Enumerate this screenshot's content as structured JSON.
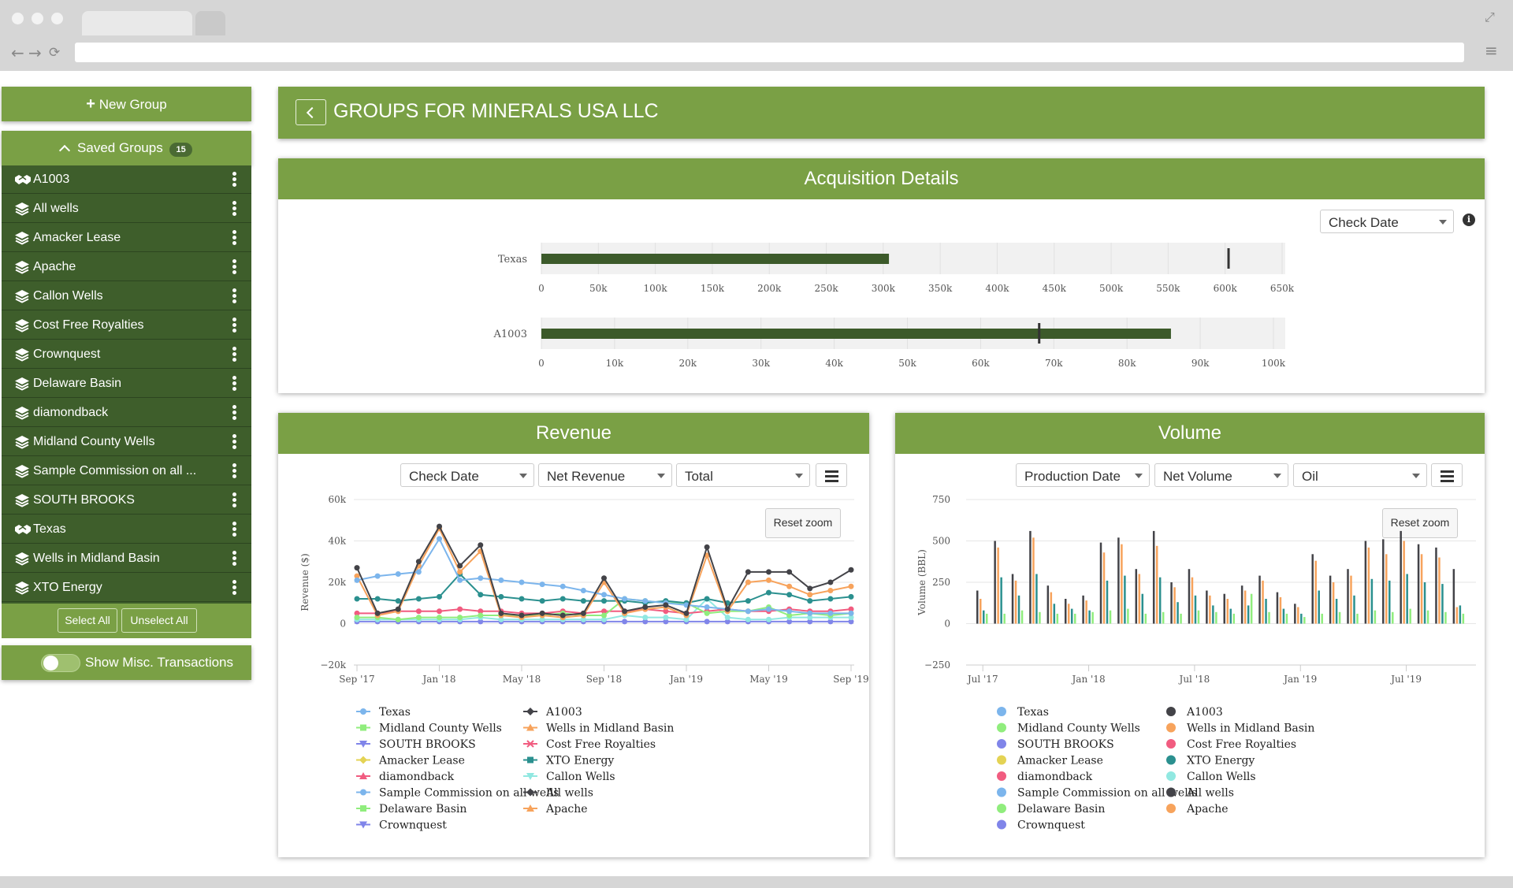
{
  "window": {
    "url": ""
  },
  "sidebar": {
    "new_group_label": "New Group",
    "saved_groups_label": "Saved Groups",
    "saved_groups_count": "15",
    "groups": [
      {
        "label": "A1003",
        "icon": "handshake-icon"
      },
      {
        "label": "All wells",
        "icon": "layers-icon"
      },
      {
        "label": "Amacker Lease",
        "icon": "layers-icon"
      },
      {
        "label": "Apache",
        "icon": "layers-icon"
      },
      {
        "label": "Callon Wells",
        "icon": "layers-icon"
      },
      {
        "label": "Cost Free Royalties",
        "icon": "layers-icon"
      },
      {
        "label": "Crownquest",
        "icon": "layers-icon"
      },
      {
        "label": "Delaware Basin",
        "icon": "layers-icon"
      },
      {
        "label": "diamondback",
        "icon": "layers-icon"
      },
      {
        "label": "Midland County Wells",
        "icon": "layers-icon"
      },
      {
        "label": "Sample Commission on all ...",
        "icon": "layers-icon"
      },
      {
        "label": "SOUTH BROOKS",
        "icon": "layers-icon"
      },
      {
        "label": "Texas",
        "icon": "handshake-icon"
      },
      {
        "label": "Wells in Midland Basin",
        "icon": "layers-icon"
      },
      {
        "label": "XTO Energy",
        "icon": "layers-icon"
      }
    ],
    "select_all_label": "Select All",
    "unselect_all_label": "Unselect All",
    "misc_toggle_label": "Show Misc. Transactions",
    "misc_toggle_on": false
  },
  "page_title": "GROUPS FOR MINERALS USA LLC",
  "acquisition": {
    "title": "Acquisition Details",
    "date_select": "Check Date",
    "rows": [
      {
        "label": "Texas",
        "value": 305000,
        "target": 603000,
        "max": 650000,
        "ticks": [
          "0",
          "50k",
          "100k",
          "150k",
          "200k",
          "250k",
          "300k",
          "350k",
          "400k",
          "450k",
          "500k",
          "550k",
          "600k",
          "650k"
        ]
      },
      {
        "label": "A1003",
        "value": 86000,
        "target": 68000,
        "max": 100000,
        "ticks": [
          "0",
          "10k",
          "20k",
          "30k",
          "40k",
          "50k",
          "60k",
          "70k",
          "80k",
          "90k",
          "100k"
        ]
      }
    ]
  },
  "revenue": {
    "title": "Revenue",
    "select_date": "Check Date",
    "select_metric": "Net Revenue",
    "select_scope": "Total",
    "reset_zoom": "Reset zoom",
    "ylabel": "Revenue ($)",
    "yticks": [
      "60k",
      "40k",
      "20k",
      "0",
      "−20k"
    ],
    "xticks": [
      "Sep '17",
      "Jan '18",
      "May '18",
      "Sep '18",
      "Jan '19",
      "May '19",
      "Sep '19"
    ]
  },
  "volume": {
    "title": "Volume",
    "select_date": "Production Date",
    "select_metric": "Net Volume",
    "select_product": "Oil",
    "reset_zoom": "Reset zoom",
    "ylabel": "Volume (BBL)",
    "yticks": [
      "750",
      "500",
      "250",
      "0",
      "−250"
    ],
    "xticks": [
      "Jul '17",
      "Jan '18",
      "Jul '18",
      "Jan '19",
      "Jul '19"
    ]
  },
  "legend": {
    "left": [
      "Texas",
      "Midland County Wells",
      "SOUTH BROOKS",
      "Amacker Lease",
      "diamondback",
      "Sample Commission on all wells",
      "Delaware Basin",
      "Crownquest"
    ],
    "right": [
      "A1003",
      "Wells in Midland Basin",
      "Cost Free Royalties",
      "XTO Energy",
      "Callon Wells",
      "All wells",
      "Apache"
    ]
  },
  "colors": {
    "brand_green": "#7aa045",
    "dark_green": "#3e5e2b",
    "bar_green": "#3c5a2a",
    "series": {
      "Texas": "#7cb5ec",
      "Midland County Wells": "#90ed7d",
      "SOUTH BROOKS": "#8085e9",
      "Amacker Lease": "#e4d354",
      "diamondback": "#f15c80",
      "Sample Commission on all wells": "#7cb5ec",
      "Delaware Basin": "#90ed7d",
      "Crownquest": "#8085e9",
      "A1003": "#434348",
      "Wells in Midland Basin": "#f7a35c",
      "Cost Free Royalties": "#f15c80",
      "XTO Energy": "#2b908f",
      "Callon Wells": "#91e8e1",
      "All wells": "#434348",
      "Apache": "#f7a35c"
    }
  },
  "chart_data": [
    {
      "type": "bar",
      "title": "Acquisition Details",
      "categories": [
        "Texas"
      ],
      "values": [
        305000
      ],
      "target": 603000,
      "xlim": [
        0,
        650000
      ]
    },
    {
      "type": "bar",
      "categories": [
        "A1003"
      ],
      "values": [
        86000
      ],
      "target": 68000,
      "xlim": [
        0,
        100000
      ]
    },
    {
      "type": "line",
      "title": "Revenue",
      "ylabel": "Revenue ($)",
      "ylim": [
        -20000,
        60000
      ],
      "x": [
        "Sep '17",
        "Oct '17",
        "Nov '17",
        "Dec '17",
        "Jan '18",
        "Feb '18",
        "Mar '18",
        "Apr '18",
        "May '18",
        "Jun '18",
        "Jul '18",
        "Aug '18",
        "Sep '18",
        "Oct '18",
        "Nov '18",
        "Dec '18",
        "Jan '19",
        "Feb '19",
        "Mar '19",
        "Apr '19",
        "May '19",
        "Jun '19",
        "Jul '19",
        "Aug '19",
        "Sep '19"
      ],
      "series": [
        {
          "name": "A1003",
          "values": [
            27000,
            5000,
            7000,
            30000,
            47000,
            28000,
            38000,
            5000,
            4000,
            5000,
            4000,
            5000,
            22000,
            6000,
            8000,
            9000,
            5000,
            37000,
            7000,
            25000,
            25000,
            25000,
            17000,
            20000,
            26000
          ]
        },
        {
          "name": "Texas",
          "values": [
            21000,
            23000,
            24000,
            25000,
            41000,
            21000,
            22000,
            21000,
            20000,
            19000,
            18000,
            16000,
            14000,
            12000,
            11000,
            10000,
            9000,
            8000,
            7000,
            6000,
            7000,
            6000,
            5000,
            5000,
            5000
          ]
        },
        {
          "name": "Wells in Midland Basin",
          "values": [
            23000,
            4000,
            6000,
            28000,
            46000,
            25000,
            35000,
            4000,
            3000,
            4000,
            3000,
            4000,
            20000,
            5000,
            7000,
            8000,
            4000,
            33000,
            6000,
            20000,
            21000,
            18000,
            14000,
            16000,
            18000
          ]
        },
        {
          "name": "XTO Energy",
          "values": [
            12000,
            12000,
            11000,
            12000,
            13000,
            24000,
            14000,
            13000,
            12000,
            11000,
            12000,
            11000,
            11000,
            11000,
            10000,
            11000,
            10000,
            12000,
            10000,
            11000,
            15000,
            14000,
            11000,
            12000,
            13000
          ]
        },
        {
          "name": "Midland County Wells",
          "values": [
            3000,
            3000,
            2000,
            3000,
            3000,
            3000,
            4000,
            4000,
            4000,
            4000,
            5000,
            4000,
            4000,
            12000,
            11000,
            10000,
            10000,
            5000,
            6000,
            6000,
            8000,
            4000,
            5000,
            4000,
            5000
          ]
        },
        {
          "name": "diamondback",
          "values": [
            5000,
            5000,
            6000,
            6000,
            6000,
            7000,
            6000,
            6000,
            5000,
            5000,
            6000,
            5000,
            6000,
            6000,
            7000,
            6000,
            5000,
            6000,
            7000,
            6000,
            6000,
            7000,
            6000,
            6000,
            7000
          ]
        },
        {
          "name": "Callon Wells",
          "values": [
            2000,
            2000,
            2000,
            2000,
            2000,
            2000,
            3000,
            2000,
            2000,
            2000,
            2000,
            2000,
            2000,
            4000,
            3000,
            3000,
            2000,
            12000,
            3000,
            2000,
            2000,
            3000,
            3000,
            3000,
            3000
          ]
        },
        {
          "name": "SOUTH BROOKS",
          "values": [
            1000,
            1000,
            1000,
            1000,
            1000,
            1000,
            1000,
            1000,
            1000,
            1000,
            1000,
            1000,
            1000,
            1000,
            1000,
            1000,
            1000,
            1000,
            1000,
            1000,
            1000,
            1000,
            1000,
            1000,
            1000
          ]
        }
      ]
    },
    {
      "type": "bar",
      "title": "Volume",
      "ylabel": "Volume (BBL)",
      "ylim": [
        -250,
        750
      ],
      "x": [
        "Jul '17",
        "Aug '17",
        "Sep '17",
        "Oct '17",
        "Nov '17",
        "Dec '17",
        "Jan '18",
        "Feb '18",
        "Mar '18",
        "Apr '18",
        "May '18",
        "Jun '18",
        "Jul '18",
        "Aug '18",
        "Sep '18",
        "Oct '18",
        "Nov '18",
        "Dec '18",
        "Jan '19",
        "Feb '19",
        "Mar '19",
        "Apr '19",
        "May '19",
        "Jun '19",
        "Jul '19",
        "Aug '19",
        "Sep '19",
        "Oct '19"
      ],
      "series": [
        {
          "name": "All wells",
          "values": [
            200,
            500,
            300,
            560,
            230,
            150,
            170,
            490,
            520,
            330,
            560,
            250,
            330,
            200,
            180,
            230,
            290,
            190,
            120,
            420,
            290,
            330,
            500,
            510,
            560,
            480,
            460,
            330
          ]
        },
        {
          "name": "Wells in Midland Basin",
          "values": [
            150,
            460,
            260,
            520,
            190,
            120,
            140,
            430,
            480,
            300,
            470,
            220,
            280,
            170,
            150,
            200,
            260,
            160,
            100,
            380,
            250,
            290,
            460,
            420,
            500,
            420,
            400,
            100
          ]
        },
        {
          "name": "XTO Energy",
          "values": [
            80,
            280,
            170,
            300,
            120,
            90,
            80,
            260,
            290,
            180,
            280,
            130,
            170,
            110,
            90,
            110,
            150,
            90,
            60,
            200,
            150,
            170,
            270,
            260,
            300,
            250,
            240,
            110
          ]
        },
        {
          "name": "Midland County Wells",
          "values": [
            60,
            60,
            80,
            70,
            60,
            60,
            70,
            80,
            90,
            60,
            70,
            60,
            80,
            70,
            60,
            180,
            70,
            60,
            40,
            60,
            70,
            60,
            80,
            70,
            90,
            80,
            70,
            60
          ]
        }
      ]
    }
  ]
}
